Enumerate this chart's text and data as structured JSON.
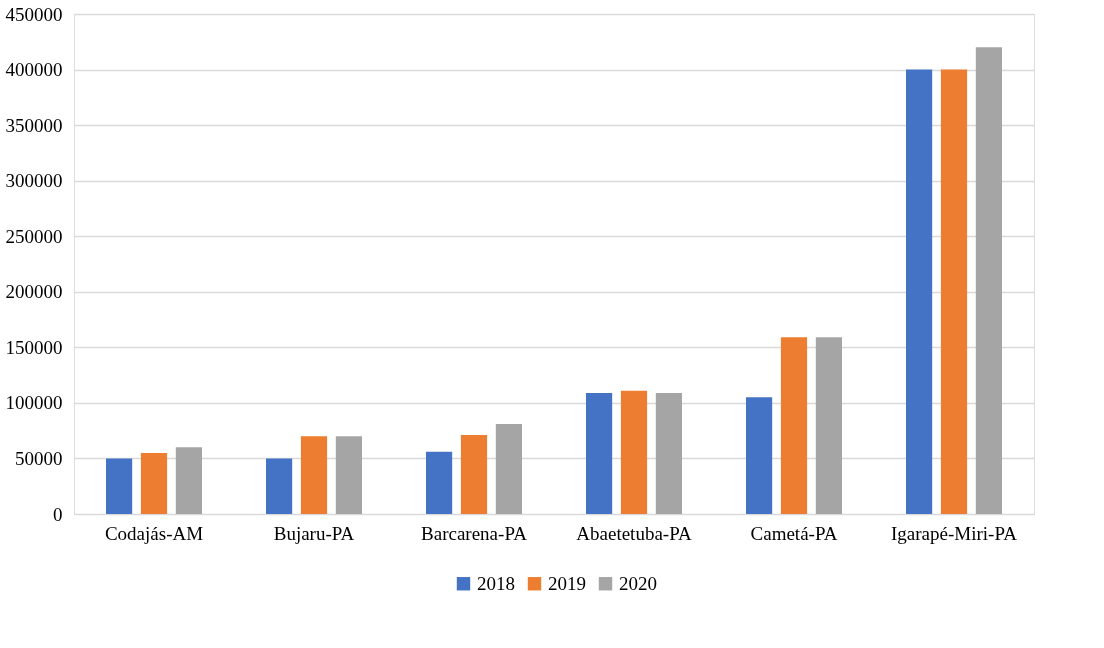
{
  "chart_data": {
    "type": "bar",
    "categories": [
      "Codajás-AM",
      "Bujaru-PA",
      "Barcarena-PA",
      "Abaetetuba-PA",
      "Cametá-PA",
      "Igarapé-Miri-PA"
    ],
    "series": [
      {
        "name": "2018",
        "color": "#4472c4",
        "values": [
          50000,
          50000,
          56000,
          109000,
          105000,
          400000
        ]
      },
      {
        "name": "2019",
        "color": "#ed7d31",
        "values": [
          55000,
          70000,
          71000,
          111000,
          159000,
          400000
        ]
      },
      {
        "name": "2020",
        "color": "#a5a5a5",
        "values": [
          60000,
          70000,
          81000,
          109000,
          159000,
          420000
        ]
      }
    ],
    "ylim": [
      0,
      450000
    ],
    "yticks": [
      0,
      50000,
      100000,
      150000,
      200000,
      250000,
      300000,
      350000,
      400000,
      450000
    ],
    "grid": "y",
    "legend": "bottom"
  }
}
